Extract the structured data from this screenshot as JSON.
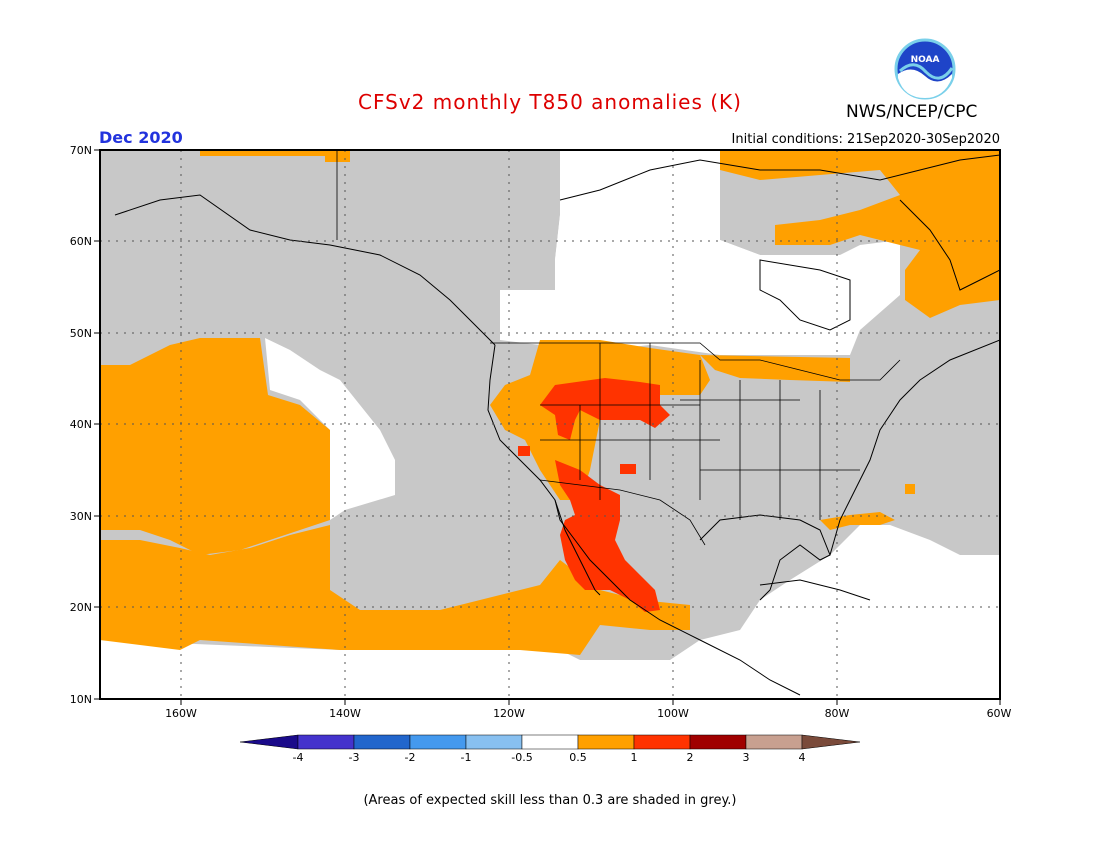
{
  "title": "CFSv2 monthly T850 anomalies (K)",
  "agency": "NWS/NCEP/CPC",
  "logo_text": "NOAA",
  "month_label": "Dec 2020",
  "initial_conditions": "Initial conditions: 21Sep2020-30Sep2020",
  "footnote": "(Areas of expected skill less than 0.3 are shaded in grey.)",
  "lat_labels": [
    "70N",
    "60N",
    "50N",
    "40N",
    "30N",
    "20N",
    "10N"
  ],
  "lon_labels": [
    "160W",
    "140W",
    "120W",
    "100W",
    "80W",
    "60W"
  ],
  "colorbar": {
    "tick_labels": [
      "-4",
      "-3",
      "-2",
      "-1",
      "-0.5",
      "0.5",
      "1",
      "2",
      "3",
      "4"
    ],
    "colors": [
      "#1a0a8a",
      "#4433cc",
      "#2266cc",
      "#4499ee",
      "#88c0f0",
      "#ffffff",
      "#ffa000",
      "#ff3300",
      "#a00000",
      "#c8a090",
      "#7a4a3a"
    ]
  },
  "map_colors": {
    "grey": "#c8c8c8",
    "orange": "#ffa000",
    "red": "#ff3300",
    "white": "#ffffff"
  }
}
